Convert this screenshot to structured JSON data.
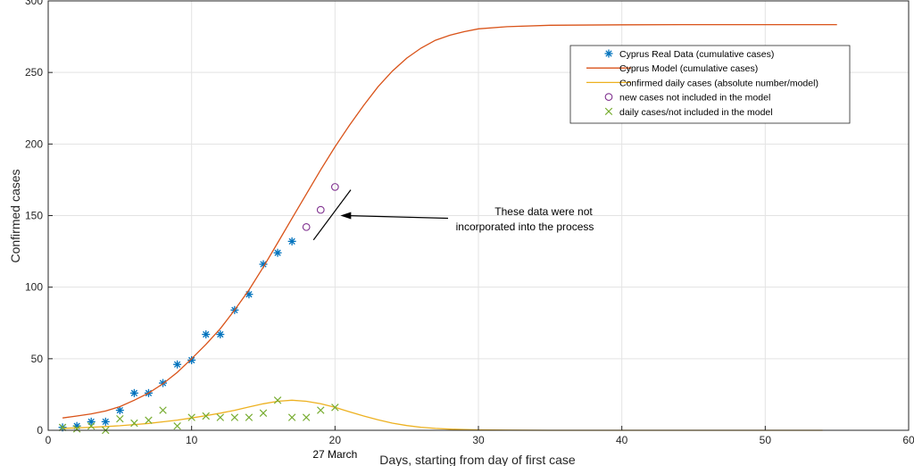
{
  "chart_data": {
    "type": "line",
    "xlabel": "Days, starting from day of first case",
    "ylabel": "Confirmed cases",
    "xlim": [
      0,
      60
    ],
    "ylim": [
      0,
      300
    ],
    "xticks": [
      0,
      10,
      20,
      30,
      40,
      50,
      60
    ],
    "yticks": [
      0,
      50,
      100,
      150,
      200,
      250,
      300
    ],
    "grid": true,
    "legend_position": "top-right",
    "date_annotation": {
      "x": 20,
      "text": "27 March"
    },
    "annotation": {
      "line1": "These data were not",
      "line2": "incorporated into the process",
      "points_to": [
        20,
        150
      ]
    },
    "series": [
      {
        "name": "Cyprus Real Data (cumulative cases)",
        "kind": "marker",
        "marker": "asterisk",
        "color": "#0072BD",
        "points": [
          [
            1,
            2
          ],
          [
            2,
            3
          ],
          [
            3,
            6
          ],
          [
            4,
            6
          ],
          [
            5,
            14
          ],
          [
            6,
            26
          ],
          [
            7,
            26
          ],
          [
            8,
            33
          ],
          [
            9,
            46
          ],
          [
            10,
            49
          ],
          [
            11,
            67
          ],
          [
            12,
            67
          ],
          [
            13,
            84
          ],
          [
            14,
            95
          ],
          [
            15,
            116
          ],
          [
            16,
            124
          ],
          [
            17,
            132
          ]
        ]
      },
      {
        "name": "Cyprus Model (cumulative cases)",
        "kind": "line",
        "color": "#D95319",
        "points": [
          [
            1,
            8.6
          ],
          [
            2,
            10
          ],
          [
            3,
            11.5
          ],
          [
            4,
            13.5
          ],
          [
            5,
            16.5
          ],
          [
            6,
            21
          ],
          [
            7,
            26
          ],
          [
            8,
            32.5
          ],
          [
            9,
            40.5
          ],
          [
            10,
            50
          ],
          [
            11,
            60
          ],
          [
            12,
            71
          ],
          [
            13,
            84
          ],
          [
            14,
            98
          ],
          [
            15,
            114
          ],
          [
            16,
            131
          ],
          [
            17,
            148
          ],
          [
            18,
            165
          ],
          [
            19,
            182
          ],
          [
            20,
            198
          ],
          [
            21,
            213
          ],
          [
            22,
            227
          ],
          [
            23,
            240
          ],
          [
            24,
            251
          ],
          [
            25,
            260
          ],
          [
            26,
            267
          ],
          [
            27,
            272.5
          ],
          [
            28,
            276
          ],
          [
            29,
            278.5
          ],
          [
            30,
            280.5
          ],
          [
            32,
            282
          ],
          [
            35,
            283
          ],
          [
            40,
            283.3
          ],
          [
            45,
            283.4
          ],
          [
            50,
            283.4
          ],
          [
            55,
            283.4
          ]
        ]
      },
      {
        "name": "Confirmed daily cases (absolute number/model)",
        "kind": "line",
        "color": "#EDB120",
        "points": [
          [
            1,
            1.4
          ],
          [
            2,
            1.7
          ],
          [
            3,
            2.1
          ],
          [
            4,
            2.6
          ],
          [
            5,
            3.2
          ],
          [
            6,
            4
          ],
          [
            7,
            4.8
          ],
          [
            8,
            5.9
          ],
          [
            9,
            7.1
          ],
          [
            10,
            8.6
          ],
          [
            11,
            10.2
          ],
          [
            12,
            12
          ],
          [
            13,
            14
          ],
          [
            14,
            16.3
          ],
          [
            15,
            18.5
          ],
          [
            16,
            20.3
          ],
          [
            17,
            21
          ],
          [
            18,
            20.3
          ],
          [
            19,
            18.6
          ],
          [
            20,
            16
          ],
          [
            21,
            13
          ],
          [
            22,
            10
          ],
          [
            23,
            7.3
          ],
          [
            24,
            5
          ],
          [
            25,
            3.3
          ],
          [
            26,
            2.1
          ],
          [
            27,
            1.3
          ],
          [
            28,
            0.8
          ],
          [
            29,
            0.5
          ],
          [
            30,
            0.3
          ],
          [
            32,
            0.1
          ],
          [
            35,
            0
          ],
          [
            40,
            0
          ],
          [
            45,
            0
          ],
          [
            50,
            0
          ],
          [
            54,
            0
          ]
        ]
      },
      {
        "name": "new cases not included in the model",
        "kind": "marker",
        "marker": "circle",
        "color": "#7E2F8E",
        "points": [
          [
            18,
            142
          ],
          [
            19,
            154
          ],
          [
            20,
            170
          ]
        ]
      },
      {
        "name": "daily cases/not included in the model",
        "kind": "marker",
        "marker": "cross",
        "color": "#77AC30",
        "points": [
          [
            1,
            2
          ],
          [
            2,
            1
          ],
          [
            3,
            3
          ],
          [
            4,
            0
          ],
          [
            5,
            8
          ],
          [
            6,
            5
          ],
          [
            7,
            7
          ],
          [
            8,
            14
          ],
          [
            9,
            3
          ],
          [
            10,
            9
          ],
          [
            11,
            10
          ],
          [
            12,
            9
          ],
          [
            13,
            9
          ],
          [
            14,
            9
          ],
          [
            15,
            12
          ],
          [
            16,
            21
          ],
          [
            17,
            9
          ],
          [
            18,
            9
          ],
          [
            19,
            14
          ],
          [
            20,
            16
          ]
        ]
      }
    ]
  }
}
